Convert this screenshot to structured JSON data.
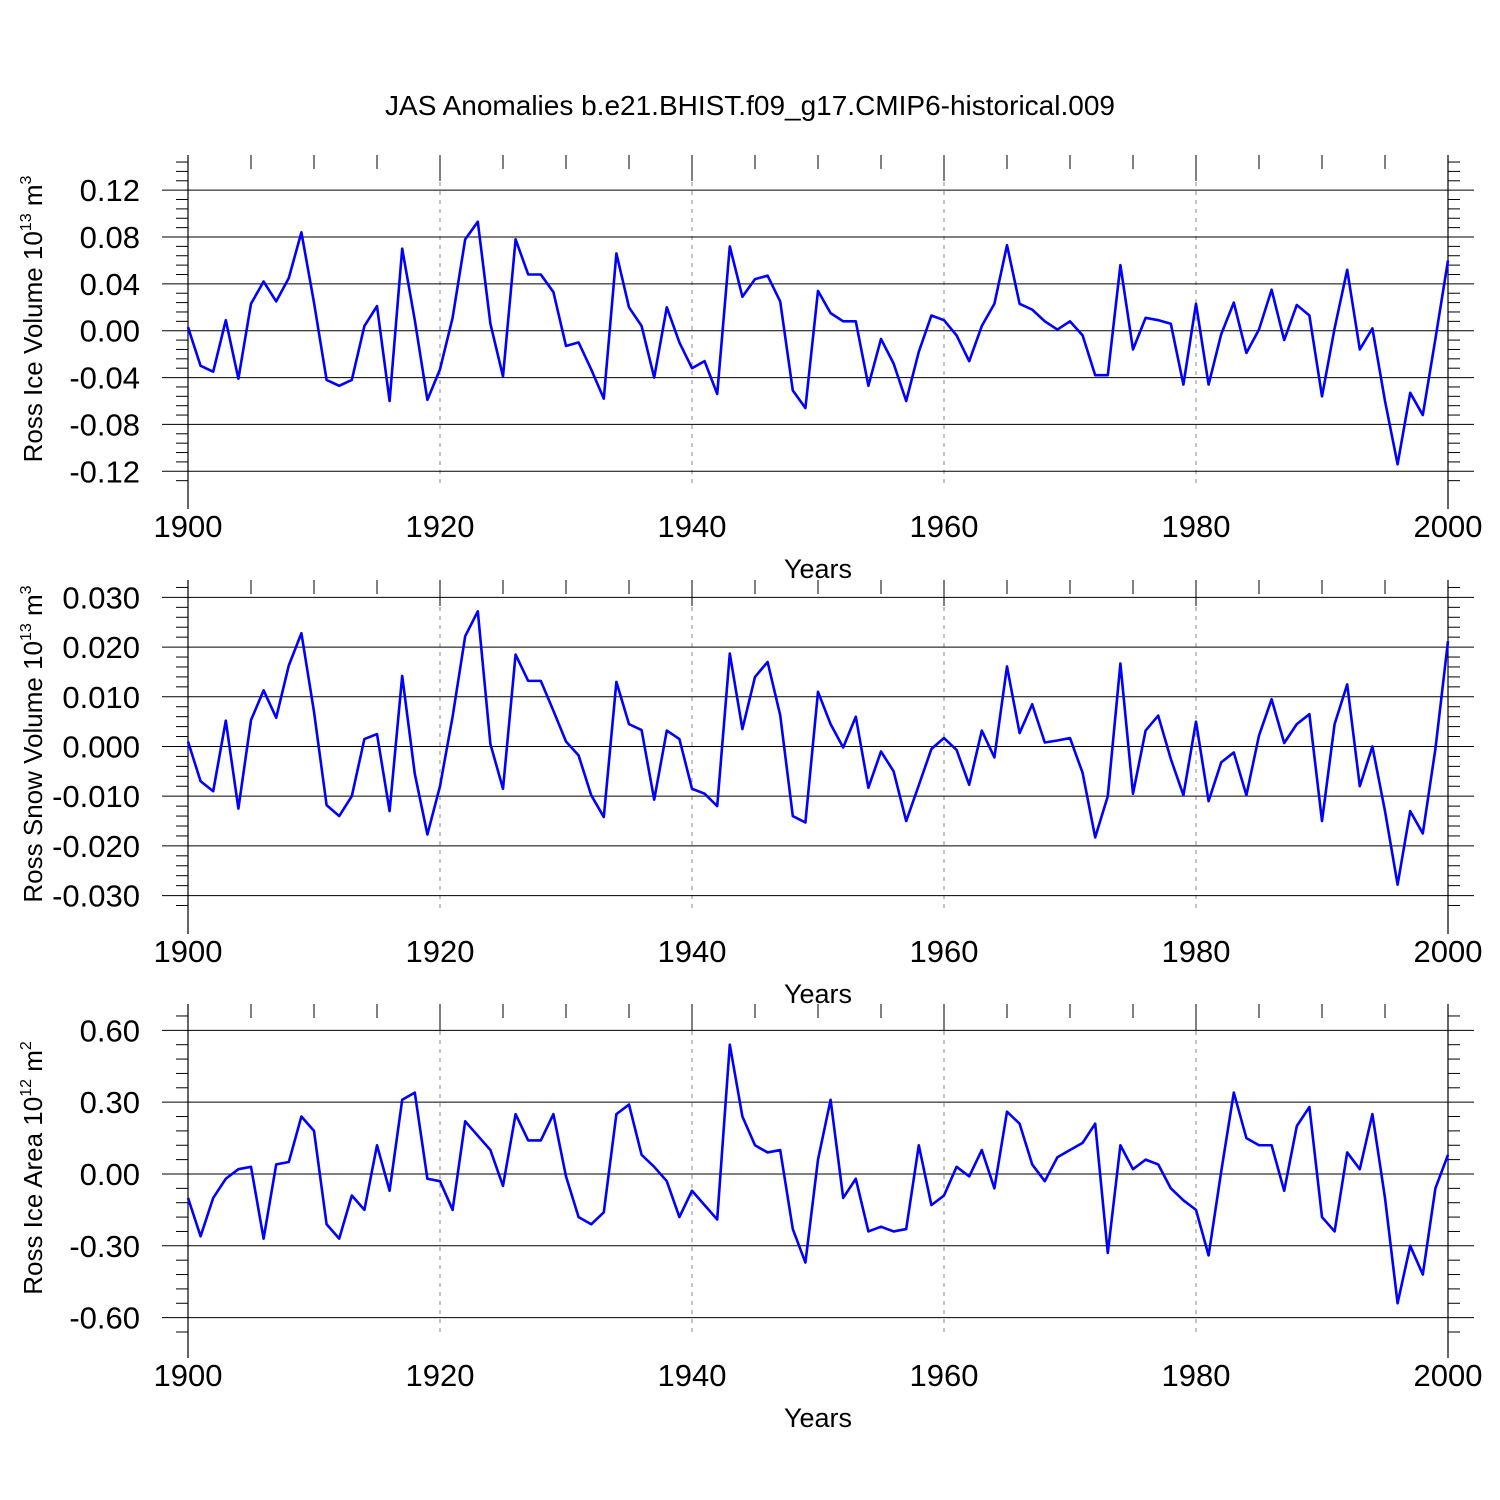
{
  "chart_data": [
    {
      "type": "line",
      "title": "JAS Anomalies b.e21.BHIST.f09_g17.CMIP6-historical.009",
      "ylabel": {
        "text": "Ross Ice Volume 10",
        "exp": "13",
        "unit": " m",
        "unit_exp": "3"
      },
      "xlabel": "Years",
      "xlim": [
        1900,
        2000
      ],
      "ylim": [
        -0.13,
        0.15
      ],
      "x_ticks": [
        1900,
        1920,
        1940,
        1960,
        1980,
        2000
      ],
      "y_ticks": [
        -0.12,
        -0.08,
        -0.04,
        0.0,
        0.04,
        0.08,
        0.12
      ],
      "y_tick_labels": [
        "-0.12",
        "-0.08",
        "-0.04",
        "0.00",
        "0.04",
        "0.08",
        "0.12"
      ],
      "line_color": "#0000ff",
      "series": [
        {
          "name": "Ross Ice Volume",
          "x_start": 1900,
          "values": [
            0.003,
            -0.03,
            -0.035,
            0.009,
            -0.041,
            0.023,
            0.042,
            0.025,
            0.045,
            0.084,
            0.024,
            -0.042,
            -0.047,
            -0.042,
            0.004,
            0.021,
            -0.06,
            0.07,
            0.009,
            -0.059,
            -0.033,
            0.011,
            0.078,
            0.093,
            0.006,
            -0.039,
            0.078,
            0.048,
            0.048,
            0.033,
            -0.013,
            -0.01,
            -0.033,
            -0.058,
            0.066,
            0.02,
            0.004,
            -0.04,
            0.02,
            -0.01,
            -0.032,
            -0.026,
            -0.054,
            0.072,
            0.029,
            0.044,
            0.047,
            0.025,
            -0.051,
            -0.066,
            0.034,
            0.015,
            0.008,
            0.008,
            -0.047,
            -0.007,
            -0.028,
            -0.06,
            -0.018,
            0.013,
            0.009,
            -0.004,
            -0.026,
            0.004,
            0.023,
            0.073,
            0.023,
            0.018,
            0.008,
            0.001,
            0.008,
            -0.004,
            -0.038,
            -0.038,
            0.056,
            -0.016,
            0.011,
            0.009,
            0.006,
            -0.046,
            0.023,
            -0.046,
            -0.003,
            0.024,
            -0.019,
            0.001,
            0.035,
            -0.008,
            0.022,
            0.013,
            -0.056,
            0.002,
            0.052,
            -0.016,
            0.002,
            -0.06,
            -0.114,
            -0.053,
            -0.072,
            -0.007,
            0.06
          ]
        }
      ]
    },
    {
      "type": "line",
      "title": "",
      "ylabel": {
        "text": "Ross Snow Volume 10",
        "exp": "13",
        "unit": " m",
        "unit_exp": "3"
      },
      "xlabel": "Years",
      "xlim": [
        1900,
        2000
      ],
      "ylim": [
        -0.0325,
        0.0335
      ],
      "x_ticks": [
        1900,
        1920,
        1940,
        1960,
        1980,
        2000
      ],
      "y_ticks": [
        -0.03,
        -0.02,
        -0.01,
        0.0,
        0.01,
        0.02,
        0.03
      ],
      "y_tick_labels": [
        "-0.030",
        "-0.020",
        "-0.010",
        "0.000",
        "0.010",
        "0.020",
        "0.030"
      ],
      "line_color": "#0000ff",
      "series": [
        {
          "name": "Ross Snow Volume",
          "x_start": 1900,
          "values": [
            0.001,
            -0.007,
            -0.009,
            0.0052,
            -0.0125,
            0.0053,
            0.0113,
            0.0058,
            0.0163,
            0.0228,
            0.007,
            -0.0118,
            -0.014,
            -0.01,
            0.0015,
            0.0025,
            -0.013,
            0.0142,
            -0.0055,
            -0.0177,
            -0.008,
            0.006,
            0.0222,
            0.0272,
            0.0005,
            -0.0085,
            0.0185,
            0.0132,
            0.0132,
            0.0072,
            0.001,
            -0.0018,
            -0.0098,
            -0.0142,
            0.013,
            0.0045,
            0.0033,
            -0.0107,
            0.0032,
            0.0015,
            -0.0085,
            -0.0095,
            -0.012,
            0.0187,
            0.0035,
            0.014,
            0.017,
            0.0063,
            -0.014,
            -0.0153,
            0.011,
            0.0045,
            -0.0002,
            0.006,
            -0.0083,
            -0.001,
            -0.005,
            -0.015,
            -0.0078,
            -0.0005,
            0.0017,
            -0.0007,
            -0.0077,
            0.0032,
            -0.0022,
            0.0161,
            0.0027,
            0.0085,
            0.0008,
            0.0012,
            0.0017,
            -0.0053,
            -0.0183,
            -0.01,
            0.0167,
            -0.0095,
            0.0032,
            0.0062,
            -0.0025,
            -0.0098,
            0.005,
            -0.011,
            -0.0032,
            -0.0012,
            -0.0098,
            0.0022,
            0.0095,
            0.0007,
            0.0045,
            0.0065,
            -0.015,
            0.0045,
            0.0125,
            -0.008,
            0.0,
            -0.013,
            -0.0278,
            -0.013,
            -0.0175,
            -0.0005,
            0.0212
          ]
        }
      ]
    },
    {
      "type": "line",
      "title": "",
      "ylabel": {
        "text": "Ross Ice Area 10",
        "exp": "12",
        "unit": " m",
        "unit_exp": "2"
      },
      "xlabel": "Years",
      "xlim": [
        1900,
        2000
      ],
      "ylim": [
        -0.66,
        0.71
      ],
      "x_ticks": [
        1900,
        1920,
        1940,
        1960,
        1980,
        2000
      ],
      "y_ticks": [
        -0.6,
        -0.3,
        0.0,
        0.3,
        0.6
      ],
      "y_tick_labels": [
        "-0.60",
        "-0.30",
        "0.00",
        "0.30",
        "0.60"
      ],
      "line_color": "#0000ff",
      "series": [
        {
          "name": "Ross Ice Area",
          "x_start": 1900,
          "values": [
            -0.1,
            -0.26,
            -0.1,
            -0.02,
            0.02,
            0.03,
            -0.27,
            0.04,
            0.05,
            0.24,
            0.18,
            -0.21,
            -0.27,
            -0.09,
            -0.15,
            0.12,
            -0.07,
            0.31,
            0.34,
            -0.02,
            -0.03,
            -0.15,
            0.22,
            0.16,
            0.1,
            -0.05,
            0.25,
            0.14,
            0.14,
            0.25,
            -0.01,
            -0.18,
            -0.21,
            -0.16,
            0.25,
            0.29,
            0.08,
            0.03,
            -0.03,
            -0.18,
            -0.07,
            -0.13,
            -0.19,
            0.54,
            0.24,
            0.12,
            0.09,
            0.1,
            -0.23,
            -0.37,
            0.06,
            0.31,
            -0.1,
            -0.02,
            -0.24,
            -0.22,
            -0.24,
            -0.23,
            0.12,
            -0.13,
            -0.09,
            0.03,
            -0.01,
            0.1,
            -0.06,
            0.26,
            0.21,
            0.04,
            -0.03,
            0.07,
            0.1,
            0.13,
            0.21,
            -0.33,
            0.12,
            0.02,
            0.06,
            0.04,
            -0.06,
            -0.11,
            -0.15,
            -0.34,
            0.01,
            0.34,
            0.15,
            0.12,
            0.12,
            -0.07,
            0.2,
            0.28,
            -0.18,
            -0.24,
            0.09,
            0.02,
            0.25,
            -0.1,
            -0.54,
            -0.3,
            -0.42,
            -0.06,
            0.08
          ]
        }
      ]
    }
  ]
}
